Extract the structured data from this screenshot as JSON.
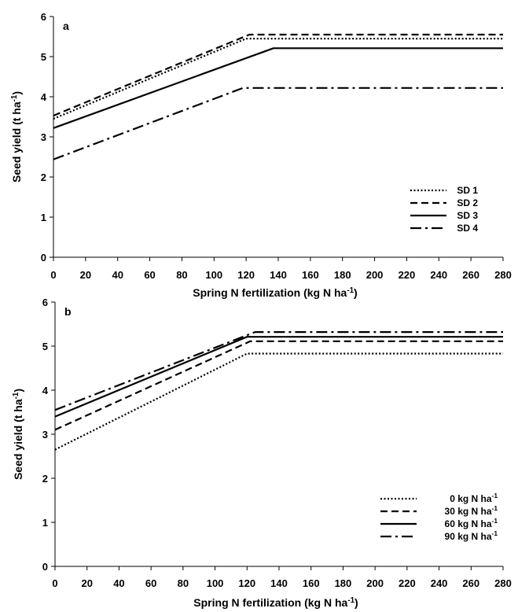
{
  "chart_data": [
    {
      "type": "line",
      "panel_label": "a",
      "xlabel": "Spring N fertilization (kg N ha",
      "xlabel_sup": "-1",
      "xlabel_end": ")",
      "ylabel": "Seed yield (t ha",
      "ylabel_sup": "-1",
      "ylabel_end": ")",
      "xlim": [
        0,
        280
      ],
      "ylim": [
        0,
        6
      ],
      "xticks": [
        "0",
        "20",
        "40",
        "60",
        "80",
        "100",
        "120",
        "140",
        "160",
        "180",
        "200",
        "220",
        "240",
        "260",
        "280"
      ],
      "yticks": [
        "0",
        "1",
        "2",
        "3",
        "4",
        "5",
        "6"
      ],
      "grid": false,
      "legend_position": "bottom-right",
      "series": [
        {
          "name": "SD 1",
          "name_sup": "",
          "style": "dotted",
          "x": [
            0,
            120,
            280
          ],
          "y": [
            3.45,
            5.45,
            5.45
          ]
        },
        {
          "name": "SD 2",
          "name_sup": "",
          "style": "dashed",
          "x": [
            0,
            122,
            280
          ],
          "y": [
            3.53,
            5.55,
            5.55
          ]
        },
        {
          "name": "SD 3",
          "name_sup": "",
          "style": "solid",
          "x": [
            0,
            137,
            280
          ],
          "y": [
            3.22,
            5.21,
            5.21
          ]
        },
        {
          "name": "SD 4",
          "name_sup": "",
          "style": "dashdot",
          "x": [
            0,
            118,
            280
          ],
          "y": [
            2.44,
            4.22,
            4.22
          ]
        }
      ]
    },
    {
      "type": "line",
      "panel_label": "b",
      "xlabel": "Spring N fertilization (kg N ha",
      "xlabel_sup": "-1",
      "xlabel_end": ")",
      "ylabel": "Seed yield (t ha",
      "ylabel_sup": "-1",
      "ylabel_end": ")",
      "xlim": [
        0,
        280
      ],
      "ylim": [
        0,
        6
      ],
      "xticks": [
        "0",
        "20",
        "40",
        "60",
        "80",
        "100",
        "120",
        "140",
        "160",
        "180",
        "200",
        "220",
        "240",
        "260",
        "280"
      ],
      "yticks": [
        "0",
        "1",
        "2",
        "3",
        "4",
        "5",
        "6"
      ],
      "grid": false,
      "legend_position": "bottom-right",
      "series": [
        {
          "name": "0 kg N ha",
          "name_sup": "-1",
          "style": "dotted",
          "x": [
            0,
            120,
            280
          ],
          "y": [
            2.65,
            4.83,
            4.83
          ]
        },
        {
          "name": "30 kg N ha",
          "name_sup": "-1",
          "style": "dashed",
          "x": [
            0,
            122,
            280
          ],
          "y": [
            3.1,
            5.11,
            5.11
          ]
        },
        {
          "name": "60 kg N ha",
          "name_sup": "-1",
          "style": "solid",
          "x": [
            0,
            120,
            280
          ],
          "y": [
            3.4,
            5.21,
            5.21
          ]
        },
        {
          "name": "90 kg N ha",
          "name_sup": "-1",
          "style": "dashdot",
          "x": [
            0,
            125,
            280
          ],
          "y": [
            3.55,
            5.32,
            5.32
          ]
        }
      ]
    }
  ]
}
